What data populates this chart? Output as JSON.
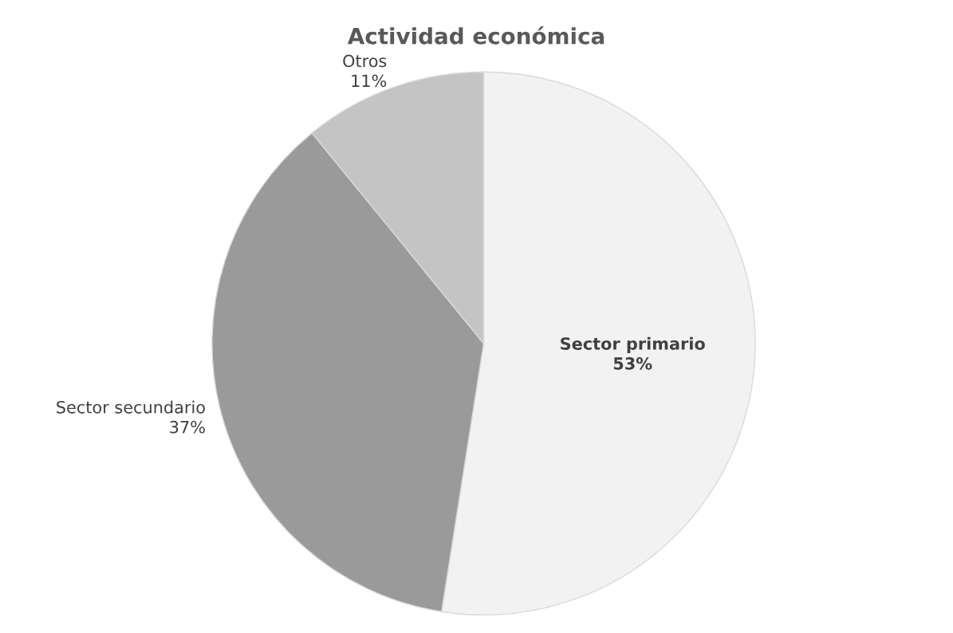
{
  "chart_data": {
    "type": "pie",
    "title": "Actividad económica",
    "categories": [
      "Sector primario",
      "Sector secundario",
      "Otros"
    ],
    "values": [
      53,
      37,
      11
    ],
    "value_labels": [
      "53%",
      "37%",
      "11%"
    ],
    "colors": [
      "#f2f2f2",
      "#9a9a9a",
      "#c4c4c4"
    ],
    "legend": false
  }
}
